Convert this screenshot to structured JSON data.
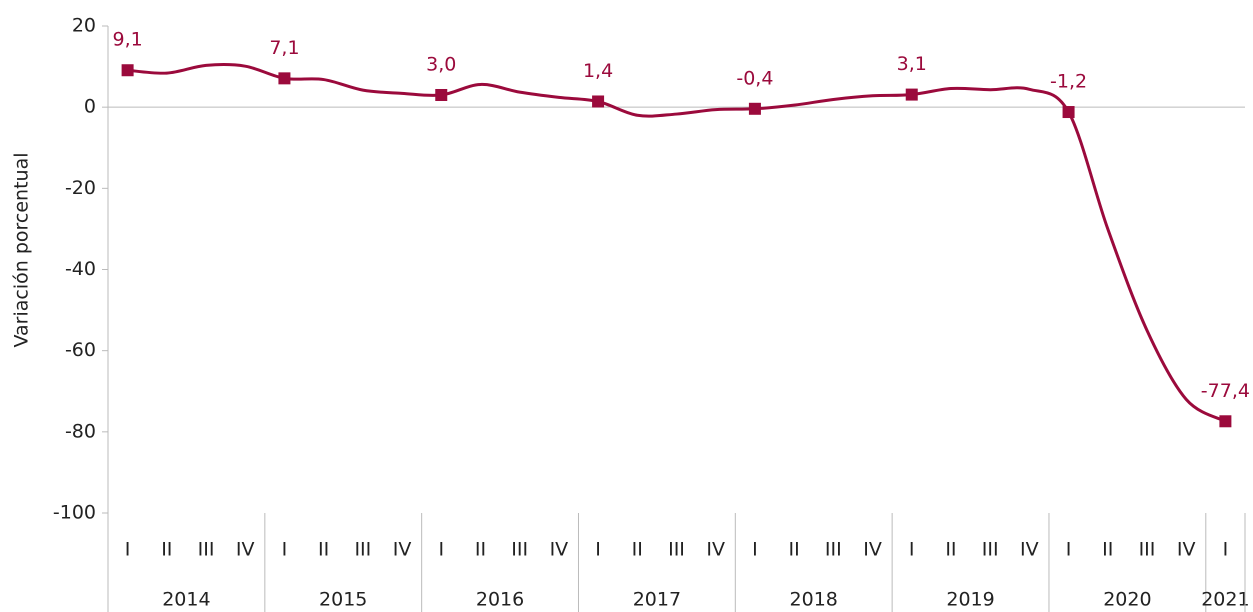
{
  "chart_data": {
    "type": "line",
    "y_axis_label": "Variación porcentual",
    "years": [
      {
        "label": "2014",
        "quarters": [
          "I",
          "II",
          "III",
          "IV"
        ]
      },
      {
        "label": "2015",
        "quarters": [
          "I",
          "II",
          "III",
          "IV"
        ]
      },
      {
        "label": "2016",
        "quarters": [
          "I",
          "II",
          "III",
          "IV"
        ]
      },
      {
        "label": "2017",
        "quarters": [
          "I",
          "II",
          "III",
          "IV"
        ]
      },
      {
        "label": "2018",
        "quarters": [
          "I",
          "II",
          "III",
          "IV"
        ]
      },
      {
        "label": "2019",
        "quarters": [
          "I",
          "II",
          "III",
          "IV"
        ]
      },
      {
        "label": "2020",
        "quarters": [
          "I",
          "II",
          "III",
          "IV"
        ]
      },
      {
        "label": "2021",
        "quarters": [
          "I"
        ]
      }
    ],
    "values": [
      9.1,
      8.4,
      10.3,
      10.1,
      7.1,
      6.8,
      4.2,
      3.4,
      3.0,
      5.6,
      3.7,
      2.4,
      1.4,
      -2.0,
      -1.7,
      -0.6,
      -0.4,
      0.5,
      1.9,
      2.8,
      3.1,
      4.6,
      4.3,
      4.4,
      -1.2,
      -30,
      -55,
      -72,
      -77.4
    ],
    "value_labels": [
      "9,1",
      null,
      null,
      null,
      "7,1",
      null,
      null,
      null,
      "3,0",
      null,
      null,
      null,
      "1,4",
      null,
      null,
      null,
      "-0,4",
      null,
      null,
      null,
      "3,1",
      null,
      null,
      null,
      "-1,2",
      null,
      null,
      null,
      "-77,4"
    ],
    "color": "#9b0a3c",
    "ylim": [
      -100,
      20
    ],
    "yticks": [
      -100,
      -80,
      -60,
      -40,
      -20,
      0,
      20
    ]
  }
}
